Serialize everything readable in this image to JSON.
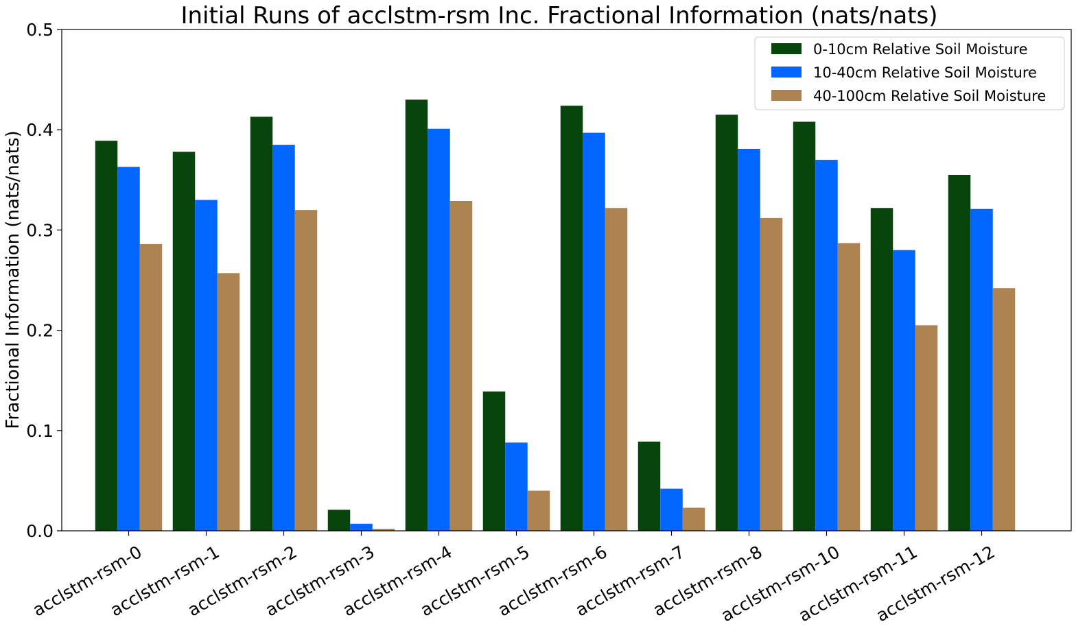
{
  "chart_data": {
    "type": "bar",
    "title": "Initial Runs of acclstm-rsm Inc. Fractional Information (nats/nats)",
    "xlabel": "",
    "ylabel": "Fractional Information (nats/nats)",
    "ylim": [
      0,
      0.5
    ],
    "yticks": [
      "0.0",
      "0.1",
      "0.2",
      "0.3",
      "0.4",
      "0.5"
    ],
    "grid": false,
    "legend_position": "top-right",
    "categories": [
      "acclstm-rsm-0",
      "acclstm-rsm-1",
      "acclstm-rsm-2",
      "acclstm-rsm-3",
      "acclstm-rsm-4",
      "acclstm-rsm-5",
      "acclstm-rsm-6",
      "acclstm-rsm-7",
      "acclstm-rsm-8",
      "acclstm-rsm-10",
      "acclstm-rsm-11",
      "acclstm-rsm-12"
    ],
    "series": [
      {
        "name": "0-10cm Relative Soil Moisture",
        "color": "#08450d",
        "values": [
          0.389,
          0.378,
          0.413,
          0.021,
          0.43,
          0.139,
          0.424,
          0.089,
          0.415,
          0.408,
          0.322,
          0.355
        ]
      },
      {
        "name": "10-40cm Relative Soil Moisture",
        "color": "#0066ff",
        "values": [
          0.363,
          0.33,
          0.385,
          0.007,
          0.401,
          0.088,
          0.397,
          0.042,
          0.381,
          0.37,
          0.28,
          0.321
        ]
      },
      {
        "name": "40-100cm Relative Soil Moisture",
        "color": "#ad8451",
        "values": [
          0.286,
          0.257,
          0.32,
          0.002,
          0.329,
          0.04,
          0.322,
          0.023,
          0.312,
          0.287,
          0.205,
          0.242
        ]
      }
    ]
  }
}
